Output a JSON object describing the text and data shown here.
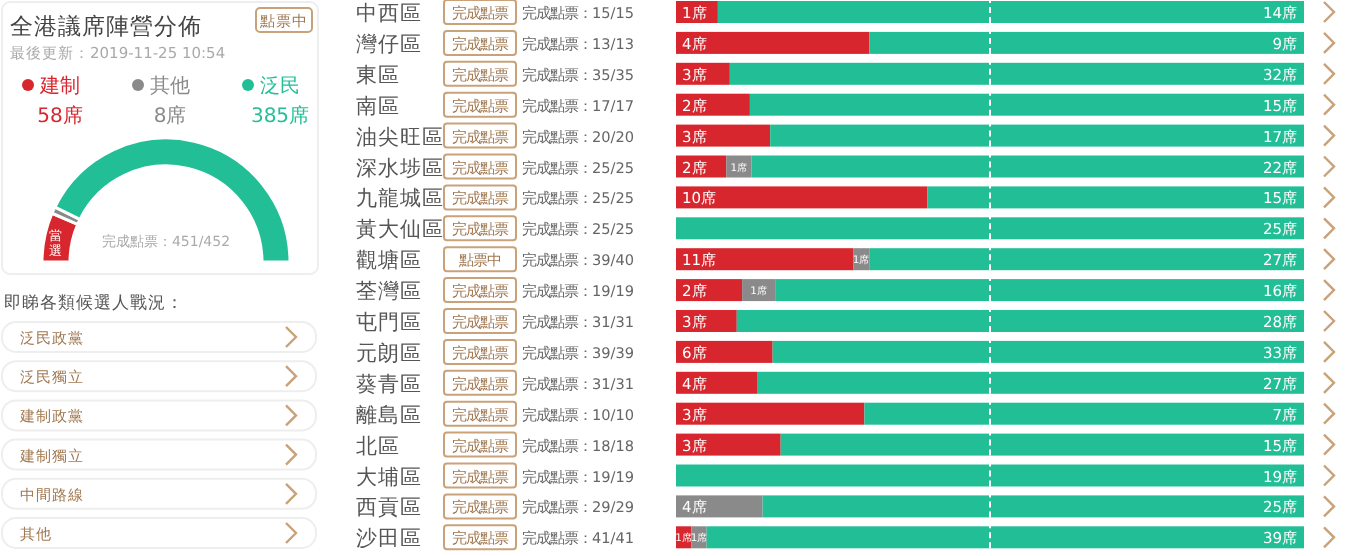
{
  "chart_data": [
    {
      "type": "donut",
      "title": "全港議席陣營分佈",
      "subtitle": "最後更新：2019-11-25 10:54",
      "legend": "top",
      "categories": [
        "建制",
        "其他",
        "泛民"
      ],
      "values": [
        58,
        8,
        385
      ],
      "colors": [
        "#d7262e",
        "#8a8a8a",
        "#22bf97"
      ],
      "value_labels": [
        "58席",
        "8席",
        "385席"
      ],
      "annotations": [
        "點票中",
        "完成點票：451/452",
        "當選"
      ]
    },
    {
      "type": "other",
      "title": "即睇各類候選人戰況：",
      "annotations": [
        "泛民政黨",
        "泛民獨立",
        "建制政黨",
        "建制獨立",
        "中間路線",
        "其他"
      ]
    },
    {
      "type": "bar",
      "orientation": "horizontal",
      "stacked": true,
      "categories": [
        "中西區"
      ],
      "xlim": [
        0,
        15
      ],
      "series": [
        {
          "color": "#d7262e",
          "values": [
            1
          ],
          "value_labels": [
            "1席"
          ]
        },
        {
          "color": "#22bf97",
          "values": [
            14
          ],
          "value_labels": [
            "14席"
          ]
        }
      ],
      "ref_lines": [
        {
          "axis": "x",
          "value": 7.5,
          "color": "#ffffff",
          "line_style": "dashed"
        }
      ],
      "annotations": [
        "完成點票",
        "完成點票：15/15"
      ]
    },
    {
      "type": "bar",
      "orientation": "horizontal",
      "stacked": true,
      "categories": [
        "灣仔區"
      ],
      "xlim": [
        0,
        13
      ],
      "series": [
        {
          "color": "#d7262e",
          "values": [
            4
          ],
          "value_labels": [
            "4席"
          ]
        },
        {
          "color": "#22bf97",
          "values": [
            9
          ],
          "value_labels": [
            "9席"
          ]
        }
      ],
      "ref_lines": [
        {
          "axis": "x",
          "value": 6.5,
          "color": "#ffffff",
          "line_style": "dashed"
        }
      ],
      "annotations": [
        "完成點票",
        "完成點票：13/13"
      ]
    },
    {
      "type": "bar",
      "orientation": "horizontal",
      "stacked": true,
      "categories": [
        "東區"
      ],
      "xlim": [
        0,
        35
      ],
      "series": [
        {
          "color": "#d7262e",
          "values": [
            3
          ],
          "value_labels": [
            "3席"
          ]
        },
        {
          "color": "#22bf97",
          "values": [
            32
          ],
          "value_labels": [
            "32席"
          ]
        }
      ],
      "ref_lines": [
        {
          "axis": "x",
          "value": 17.5,
          "color": "#ffffff",
          "line_style": "dashed"
        }
      ],
      "annotations": [
        "完成點票",
        "完成點票：35/35"
      ]
    },
    {
      "type": "bar",
      "orientation": "horizontal",
      "stacked": true,
      "categories": [
        "南區"
      ],
      "xlim": [
        0,
        17
      ],
      "series": [
        {
          "color": "#d7262e",
          "values": [
            2
          ],
          "value_labels": [
            "2席"
          ]
        },
        {
          "color": "#22bf97",
          "values": [
            15
          ],
          "value_labels": [
            "15席"
          ]
        }
      ],
      "ref_lines": [
        {
          "axis": "x",
          "value": 8.5,
          "color": "#ffffff",
          "line_style": "dashed"
        }
      ],
      "annotations": [
        "完成點票",
        "完成點票：17/17"
      ]
    },
    {
      "type": "bar",
      "orientation": "horizontal",
      "stacked": true,
      "categories": [
        "油尖旺區"
      ],
      "xlim": [
        0,
        20
      ],
      "series": [
        {
          "color": "#d7262e",
          "values": [
            3
          ],
          "value_labels": [
            "3席"
          ]
        },
        {
          "color": "#22bf97",
          "values": [
            17
          ],
          "value_labels": [
            "17席"
          ]
        }
      ],
      "ref_lines": [
        {
          "axis": "x",
          "value": 10,
          "color": "#ffffff",
          "line_style": "dashed"
        }
      ],
      "annotations": [
        "完成點票",
        "完成點票：20/20"
      ]
    },
    {
      "type": "bar",
      "orientation": "horizontal",
      "stacked": true,
      "categories": [
        "深水埗區"
      ],
      "xlim": [
        0,
        25
      ],
      "series": [
        {
          "color": "#d7262e",
          "values": [
            2
          ],
          "value_labels": [
            "2席"
          ]
        },
        {
          "color": "#8a8a8a",
          "values": [
            1
          ],
          "value_labels": [
            "1席"
          ]
        },
        {
          "color": "#22bf97",
          "values": [
            22
          ],
          "value_labels": [
            "22席"
          ]
        }
      ],
      "ref_lines": [
        {
          "axis": "x",
          "value": 12.5,
          "color": "#ffffff",
          "line_style": "dashed"
        }
      ],
      "annotations": [
        "完成點票",
        "完成點票：25/25"
      ]
    },
    {
      "type": "bar",
      "orientation": "horizontal",
      "stacked": true,
      "categories": [
        "九龍城區"
      ],
      "xlim": [
        0,
        25
      ],
      "series": [
        {
          "color": "#d7262e",
          "values": [
            10
          ],
          "value_labels": [
            "10席"
          ]
        },
        {
          "color": "#22bf97",
          "values": [
            15
          ],
          "value_labels": [
            "15席"
          ]
        }
      ],
      "ref_lines": [
        {
          "axis": "x",
          "value": 12.5,
          "color": "#ffffff",
          "line_style": "dashed"
        }
      ],
      "annotations": [
        "完成點票",
        "完成點票：25/25"
      ]
    },
    {
      "type": "bar",
      "orientation": "horizontal",
      "stacked": true,
      "categories": [
        "黃大仙區"
      ],
      "series": [
        {
          "color": "#22bf97",
          "values": [
            25
          ],
          "value_labels": [
            "25席"
          ]
        }
      ],
      "ref_lines": [
        {
          "axis": "x",
          "value": 12.5,
          "color": "#ffffff",
          "line_style": "dashed"
        }
      ],
      "annotations": [
        "完成點票",
        "完成點票：25/25"
      ]
    },
    {
      "type": "bar",
      "orientation": "horizontal",
      "stacked": true,
      "categories": [
        "觀塘區"
      ],
      "xlim": [
        0,
        39
      ],
      "series": [
        {
          "color": "#d7262e",
          "values": [
            11
          ],
          "value_labels": [
            "11席"
          ]
        },
        {
          "color": "#8a8a8a",
          "values": [
            1
          ],
          "value_labels": [
            "1席"
          ]
        },
        {
          "color": "#22bf97",
          "values": [
            27
          ],
          "value_labels": [
            "27席"
          ]
        }
      ],
      "ref_lines": [
        {
          "axis": "x",
          "value": 19.5,
          "color": "#ffffff",
          "line_style": "dashed"
        }
      ],
      "annotations": [
        "點票中",
        "完成點票：39/40"
      ]
    },
    {
      "type": "bar",
      "orientation": "horizontal",
      "stacked": true,
      "categories": [
        "荃灣區"
      ],
      "xlim": [
        0,
        19
      ],
      "series": [
        {
          "color": "#d7262e",
          "values": [
            2
          ],
          "value_labels": [
            "2席"
          ]
        },
        {
          "color": "#8a8a8a",
          "values": [
            1
          ],
          "value_labels": [
            "1席"
          ]
        },
        {
          "color": "#22bf97",
          "values": [
            16
          ],
          "value_labels": [
            "16席"
          ]
        }
      ],
      "ref_lines": [
        {
          "axis": "x",
          "value": 9.5,
          "color": "#ffffff",
          "line_style": "dashed"
        }
      ],
      "annotations": [
        "完成點票",
        "完成點票：19/19"
      ]
    },
    {
      "type": "bar",
      "orientation": "horizontal",
      "stacked": true,
      "categories": [
        "屯門區"
      ],
      "xlim": [
        0,
        31
      ],
      "series": [
        {
          "color": "#d7262e",
          "values": [
            3
          ],
          "value_labels": [
            "3席"
          ]
        },
        {
          "color": "#22bf97",
          "values": [
            28
          ],
          "value_labels": [
            "28席"
          ]
        }
      ],
      "ref_lines": [
        {
          "axis": "x",
          "value": 15.5,
          "color": "#ffffff",
          "line_style": "dashed"
        }
      ],
      "annotations": [
        "完成點票",
        "完成點票：31/31"
      ]
    },
    {
      "type": "bar",
      "orientation": "horizontal",
      "stacked": true,
      "categories": [
        "元朗區"
      ],
      "xlim": [
        0,
        39
      ],
      "series": [
        {
          "color": "#d7262e",
          "values": [
            6
          ],
          "value_labels": [
            "6席"
          ]
        },
        {
          "color": "#22bf97",
          "values": [
            33
          ],
          "value_labels": [
            "33席"
          ]
        }
      ],
      "ref_lines": [
        {
          "axis": "x",
          "value": 19.5,
          "color": "#ffffff",
          "line_style": "dashed"
        }
      ],
      "annotations": [
        "完成點票",
        "完成點票：39/39"
      ]
    },
    {
      "type": "bar",
      "orientation": "horizontal",
      "stacked": true,
      "categories": [
        "葵青區"
      ],
      "xlim": [
        0,
        31
      ],
      "series": [
        {
          "color": "#d7262e",
          "values": [
            4
          ],
          "value_labels": [
            "4席"
          ]
        },
        {
          "color": "#22bf97",
          "values": [
            27
          ],
          "value_labels": [
            "27席"
          ]
        }
      ],
      "ref_lines": [
        {
          "axis": "x",
          "value": 15.5,
          "color": "#ffffff",
          "line_style": "dashed"
        }
      ],
      "annotations": [
        "完成點票",
        "完成點票：31/31"
      ]
    },
    {
      "type": "bar",
      "orientation": "horizontal",
      "stacked": true,
      "categories": [
        "離島區"
      ],
      "xlim": [
        0,
        10
      ],
      "series": [
        {
          "color": "#d7262e",
          "values": [
            3
          ],
          "value_labels": [
            "3席"
          ]
        },
        {
          "color": "#22bf97",
          "values": [
            7
          ],
          "value_labels": [
            "7席"
          ]
        }
      ],
      "ref_lines": [
        {
          "axis": "x",
          "value": 5,
          "color": "#ffffff",
          "line_style": "dashed"
        }
      ],
      "annotations": [
        "完成點票",
        "完成點票：10/10"
      ]
    },
    {
      "type": "bar",
      "orientation": "horizontal",
      "stacked": true,
      "categories": [
        "北區"
      ],
      "xlim": [
        0,
        18
      ],
      "series": [
        {
          "color": "#d7262e",
          "values": [
            3
          ],
          "value_labels": [
            "3席"
          ]
        },
        {
          "color": "#22bf97",
          "values": [
            15
          ],
          "value_labels": [
            "15席"
          ]
        }
      ],
      "ref_lines": [
        {
          "axis": "x",
          "value": 9,
          "color": "#ffffff",
          "line_style": "dashed"
        }
      ],
      "annotations": [
        "完成點票",
        "完成點票：18/18"
      ]
    },
    {
      "type": "bar",
      "orientation": "horizontal",
      "stacked": true,
      "categories": [
        "大埔區"
      ],
      "series": [
        {
          "color": "#22bf97",
          "values": [
            19
          ],
          "value_labels": [
            "19席"
          ]
        }
      ],
      "ref_lines": [
        {
          "axis": "x",
          "value": 9.5,
          "color": "#ffffff",
          "line_style": "dashed"
        }
      ],
      "annotations": [
        "完成點票",
        "完成點票：19/19"
      ]
    },
    {
      "type": "bar",
      "orientation": "horizontal",
      "stacked": true,
      "categories": [
        "西貢區"
      ],
      "xlim": [
        0,
        29
      ],
      "series": [
        {
          "color": "#8a8a8a",
          "values": [
            4
          ],
          "value_labels": [
            "4席"
          ]
        },
        {
          "color": "#22bf97",
          "values": [
            25
          ],
          "value_labels": [
            "25席"
          ]
        }
      ],
      "ref_lines": [
        {
          "axis": "x",
          "value": 14.5,
          "color": "#ffffff",
          "line_style": "dashed"
        }
      ],
      "annotations": [
        "完成點票",
        "完成點票：29/29"
      ]
    },
    {
      "type": "bar",
      "orientation": "horizontal",
      "stacked": true,
      "categories": [
        "沙田區"
      ],
      "xlim": [
        0,
        41
      ],
      "series": [
        {
          "color": "#d7262e",
          "values": [
            1
          ],
          "value_labels": [
            "1席"
          ]
        },
        {
          "color": "#8a8a8a",
          "values": [
            1
          ],
          "value_labels": [
            "1席"
          ]
        },
        {
          "color": "#22bf97",
          "values": [
            39
          ],
          "value_labels": [
            "39席"
          ]
        }
      ],
      "ref_lines": [
        {
          "axis": "x",
          "value": 20.5,
          "color": "#ffffff",
          "line_style": "dashed"
        }
      ],
      "annotations": [
        "完成點票",
        "完成點票：41/41"
      ]
    }
  ]
}
